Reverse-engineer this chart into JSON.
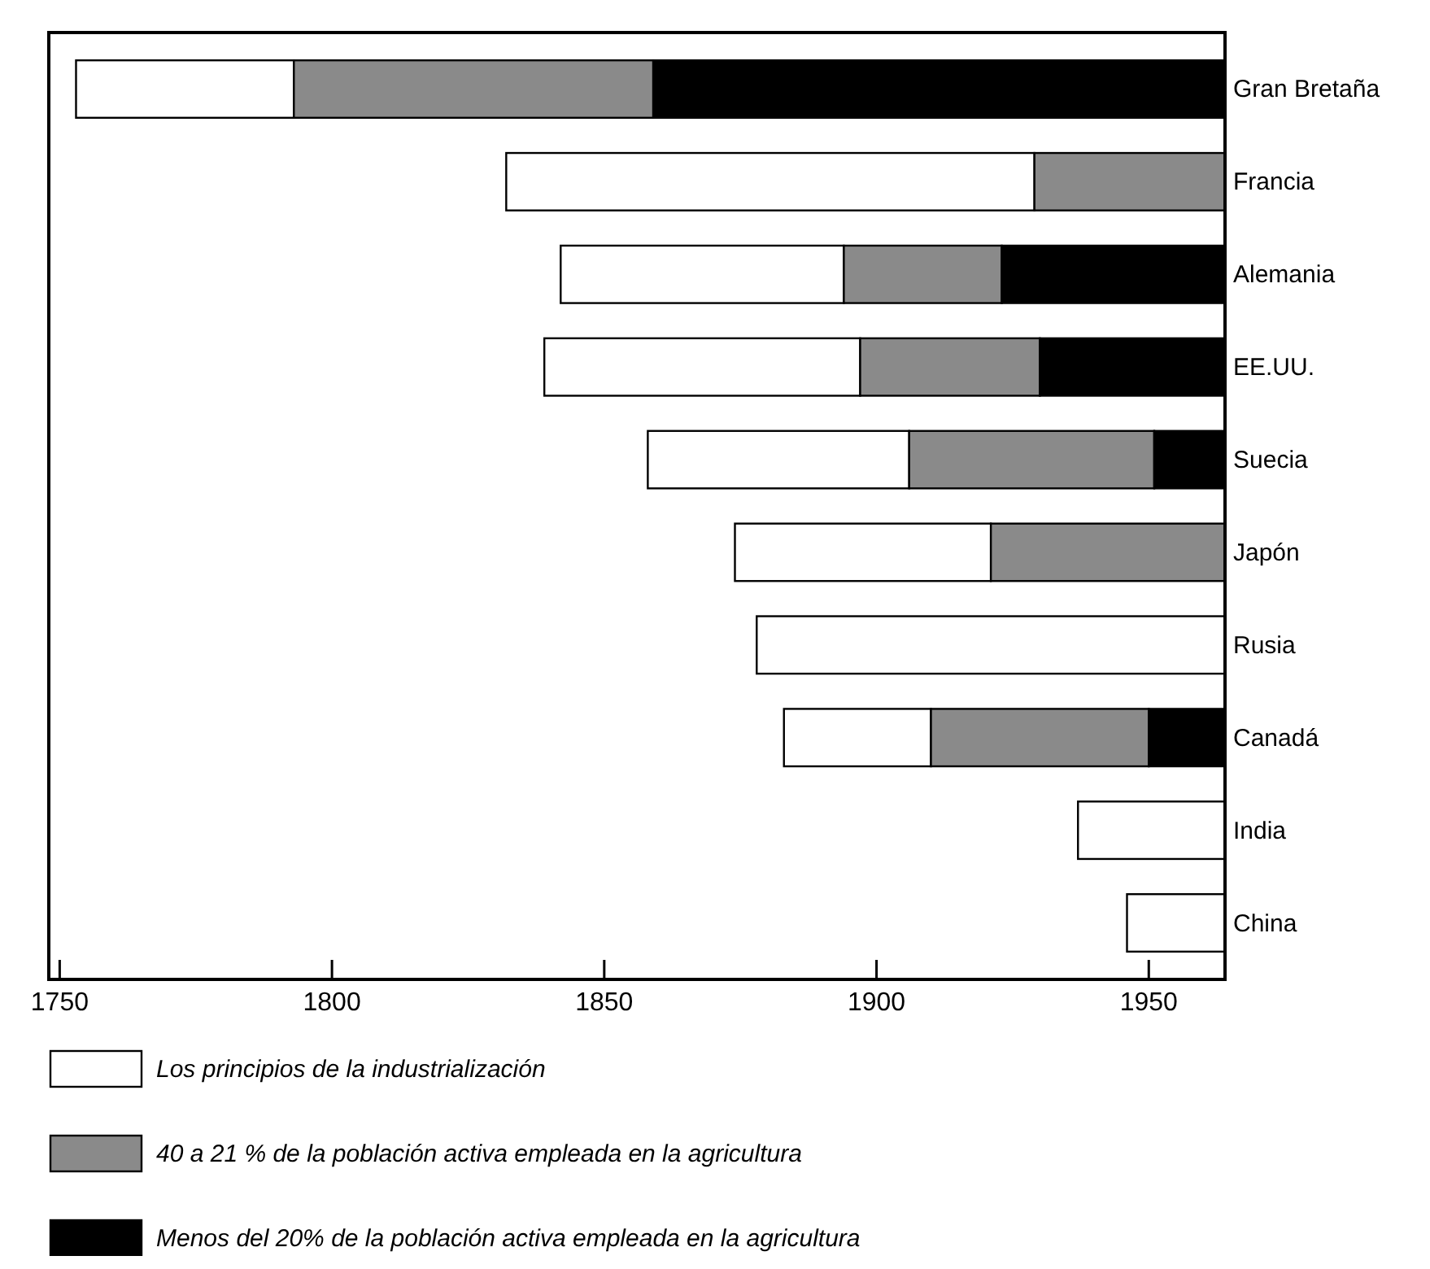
{
  "chart_data": {
    "type": "bar",
    "orientation": "horizontal",
    "categories": [
      "Gran Bretaña",
      "Francia",
      "Alemania",
      "EE.UU.",
      "Suecia",
      "Japón",
      "Rusia",
      "Canadá",
      "India",
      "China"
    ],
    "series": [
      {
        "name": "Los principios de la industrialización",
        "color": "#ffffff",
        "base": [
          1753,
          1832,
          1842,
          1839,
          1858,
          1874,
          1878,
          1883,
          1937,
          1946
        ],
        "values": [
          40,
          97,
          52,
          58,
          48,
          47,
          86,
          27,
          27,
          18
        ]
      },
      {
        "name": "40 a 21 % de la población activa empleada en la agricultura",
        "color": "#8a8a8a",
        "base": [
          1793,
          1929,
          1894,
          1897,
          1906,
          1921,
          null,
          1910,
          null,
          null
        ],
        "values": [
          66,
          35,
          29,
          33,
          45,
          43,
          null,
          40,
          null,
          null
        ]
      },
      {
        "name": "Menos del 20% de la población activa empleada en la agricultura",
        "color": "#000000",
        "base": [
          1859,
          null,
          1923,
          1930,
          1951,
          null,
          null,
          1950,
          null,
          null
        ],
        "values": [
          105,
          null,
          41,
          34,
          13,
          null,
          null,
          14,
          null,
          null
        ]
      }
    ],
    "xlim": [
      1748,
      1964
    ],
    "xticks": [
      1750,
      1800,
      1850,
      1900,
      1950
    ],
    "grid": false,
    "legend": "bottom"
  }
}
